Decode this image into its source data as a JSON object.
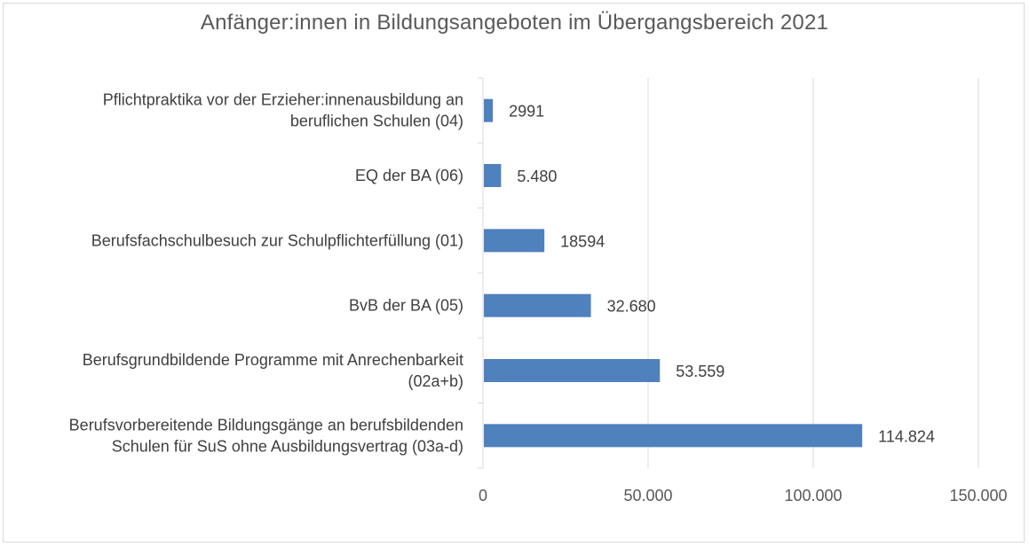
{
  "chart_data": {
    "type": "bar",
    "orientation": "horizontal",
    "title": "Anfänger:innen in Bildungsangeboten im Übergangsbereich 2021",
    "xlabel": "",
    "ylabel": "",
    "xlim": [
      0,
      150000
    ],
    "grid": true,
    "legend": "none",
    "bar_color": "#4F81BD",
    "categories": [
      [
        "Pflichtpraktika vor der Erzieher:innenausbildung an",
        "beruflichen Schulen (04)"
      ],
      [
        "EQ der BA (06)"
      ],
      [
        "Berufsfachschulbesuch zur Schulpflichterfüllung (01)"
      ],
      [
        "BvB der BA (05)"
      ],
      [
        "Berufsgrundbildende Programme mit Anrechenbarkeit",
        "(02a+b)"
      ],
      [
        "Berufsvorbereitende Bildungsgänge an berufsbildenden",
        "Schulen für SuS ohne Ausbildungsvertrag  (03a-d)"
      ]
    ],
    "values": [
      2991,
      5480,
      18594,
      32680,
      53559,
      114824
    ],
    "data_labels": [
      "2991",
      "5.480",
      "18594",
      "32.680",
      "53.559",
      "114.824"
    ],
    "x_ticks": [
      0,
      50000,
      100000,
      150000
    ],
    "x_tick_labels": [
      "0",
      "50.000",
      "100.000",
      "150.000"
    ]
  }
}
